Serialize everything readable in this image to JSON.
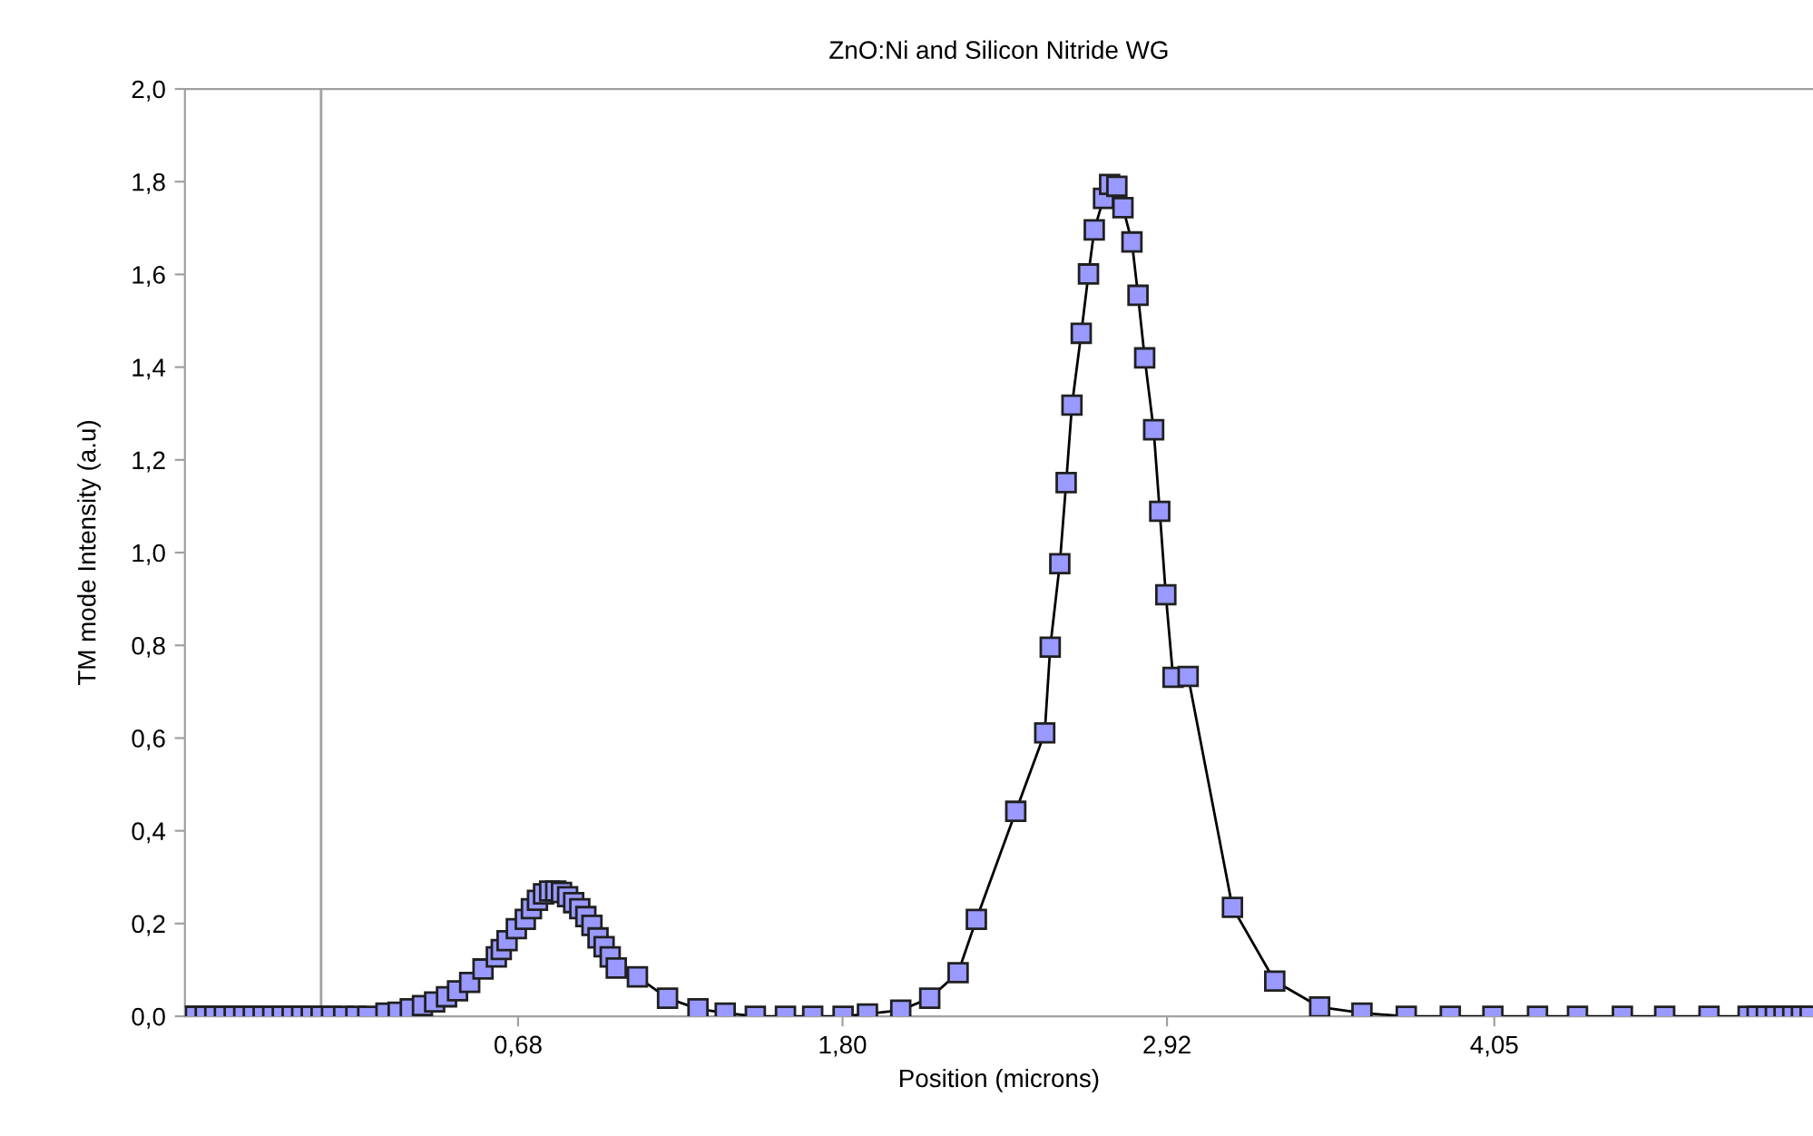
{
  "chart_data": {
    "type": "line",
    "title": "ZnO:Ni and Silicon Nitride WG",
    "xlabel": "Position (microns)",
    "ylabel": "TM mode Intensity (a.u)",
    "xlim": [
      -0.47,
      5.15
    ],
    "ylim": [
      0,
      2.0
    ],
    "xticks": [
      {
        "value": 0.68,
        "label": "0,68"
      },
      {
        "value": 1.8,
        "label": "1,80"
      },
      {
        "value": 2.92,
        "label": "2,92"
      },
      {
        "value": 4.05,
        "label": "4,05"
      }
    ],
    "yticks": [
      {
        "value": 0,
        "label": "0,0"
      },
      {
        "value": 0.2,
        "label": "0,2"
      },
      {
        "value": 0.4,
        "label": "0,4"
      },
      {
        "value": 0.6,
        "label": "0,6"
      },
      {
        "value": 0.8,
        "label": "0,8"
      },
      {
        "value": 1.0,
        "label": "1,0"
      },
      {
        "value": 1.2,
        "label": "1,2"
      },
      {
        "value": 1.4,
        "label": "1,4"
      },
      {
        "value": 1.6,
        "label": "1,6"
      },
      {
        "value": 1.8,
        "label": "1,8"
      },
      {
        "value": 2.0,
        "label": "2,0"
      }
    ],
    "grid": false,
    "legend": false,
    "marker": "square",
    "line_style": "solid",
    "ref_lines": [
      {
        "axis": "x",
        "value": 0,
        "color": "#a0a0a0"
      }
    ],
    "series": [
      {
        "color": "#9999ff",
        "x": [
          -0.467,
          -0.434,
          -0.4,
          -0.367,
          -0.334,
          -0.3,
          -0.267,
          -0.234,
          -0.2,
          -0.167,
          -0.134,
          -0.1,
          -0.067,
          -0.034,
          0.0,
          0.036,
          0.078,
          0.12,
          0.161,
          0.224,
          0.266,
          0.308,
          0.35,
          0.392,
          0.433,
          0.471,
          0.513,
          0.559,
          0.605,
          0.622,
          0.642,
          0.674,
          0.705,
          0.726,
          0.747,
          0.768,
          0.789,
          0.81,
          0.83,
          0.851,
          0.872,
          0.893,
          0.914,
          0.935,
          0.956,
          0.977,
          0.998,
          1.019,
          1.092,
          1.196,
          1.301,
          1.395,
          1.499,
          1.603,
          1.697,
          1.802,
          1.886,
          2.001,
          2.101,
          2.199,
          2.262,
          2.398,
          2.498,
          2.517,
          2.55,
          2.572,
          2.592,
          2.624,
          2.649,
          2.669,
          2.701,
          2.722,
          2.747,
          2.768,
          2.799,
          2.82,
          2.843,
          2.874,
          2.895,
          2.916,
          2.941,
          2.993,
          3.146,
          3.292,
          3.447,
          3.593,
          3.746,
          3.898,
          4.045,
          4.199,
          4.337,
          4.492,
          4.638,
          4.791,
          4.926,
          4.957,
          4.989,
          5.02,
          5.05,
          5.08,
          5.11,
          5.14
        ],
        "values": [
          0,
          0,
          0,
          0,
          0,
          0,
          0,
          0,
          0,
          0,
          0,
          0,
          0,
          0,
          0,
          0,
          0,
          0,
          0,
          0.007,
          0.009,
          0.016,
          0.023,
          0.031,
          0.042,
          0.055,
          0.073,
          0.102,
          0.128,
          0.144,
          0.163,
          0.189,
          0.209,
          0.232,
          0.25,
          0.264,
          0.27,
          0.27,
          0.267,
          0.258,
          0.245,
          0.232,
          0.215,
          0.196,
          0.169,
          0.15,
          0.128,
          0.104,
          0.085,
          0.039,
          0.016,
          0.007,
          0,
          0,
          0,
          0,
          0.005,
          0.013,
          0.039,
          0.094,
          0.209,
          0.442,
          0.611,
          0.796,
          0.976,
          1.151,
          1.318,
          1.473,
          1.601,
          1.696,
          1.764,
          1.794,
          1.79,
          1.744,
          1.67,
          1.555,
          1.42,
          1.265,
          1.089,
          0.909,
          0.731,
          0.733,
          0.235,
          0.076,
          0.02,
          0.007,
          0,
          0,
          0,
          0,
          0,
          0,
          0,
          0,
          0,
          0,
          0,
          0,
          0,
          0,
          0,
          0
        ]
      }
    ]
  }
}
